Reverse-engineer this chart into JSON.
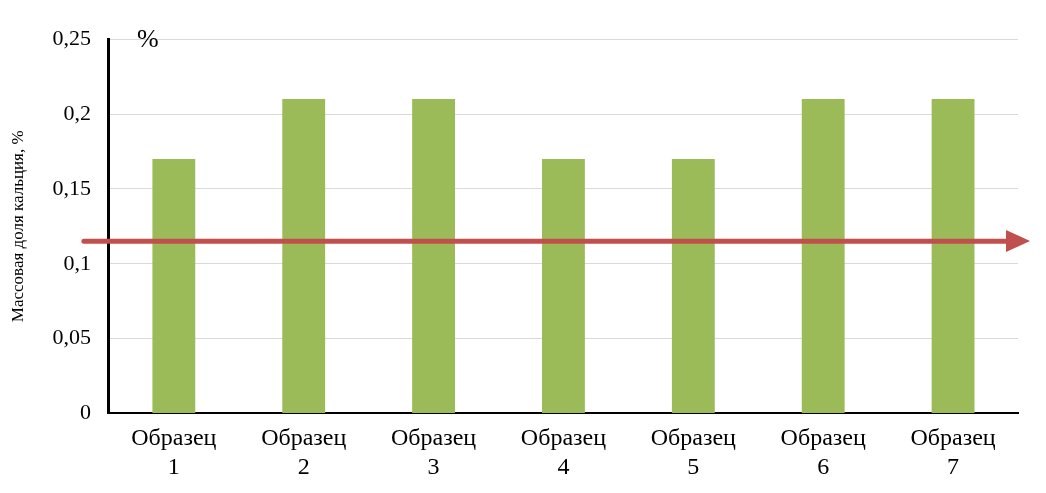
{
  "chart_data": {
    "type": "bar",
    "ylabel": "Массовая доля кальция, %",
    "annotations": [
      "%"
    ],
    "categories": [
      "Образец 1",
      "Образец 2",
      "Образец 3",
      "Образец 4",
      "Образец 5",
      "Образец 6",
      "Образец 7"
    ],
    "values": [
      0.17,
      0.21,
      0.21,
      0.17,
      0.17,
      0.21,
      0.21
    ],
    "color": "#9bbb59",
    "ylim": [
      0,
      0.25
    ],
    "yticks": [
      {
        "value": 0,
        "label": "0"
      },
      {
        "value": 0.05,
        "label": "0,05"
      },
      {
        "value": 0.1,
        "label": "0,1"
      },
      {
        "value": 0.15,
        "label": "0,15"
      },
      {
        "value": 0.2,
        "label": "0,2"
      },
      {
        "value": 0.25,
        "label": "0,25"
      }
    ],
    "ref_lines": [
      {
        "axis": "y",
        "value": 0.115,
        "color": "#c0504d"
      }
    ],
    "grid": "y",
    "legend": false
  }
}
